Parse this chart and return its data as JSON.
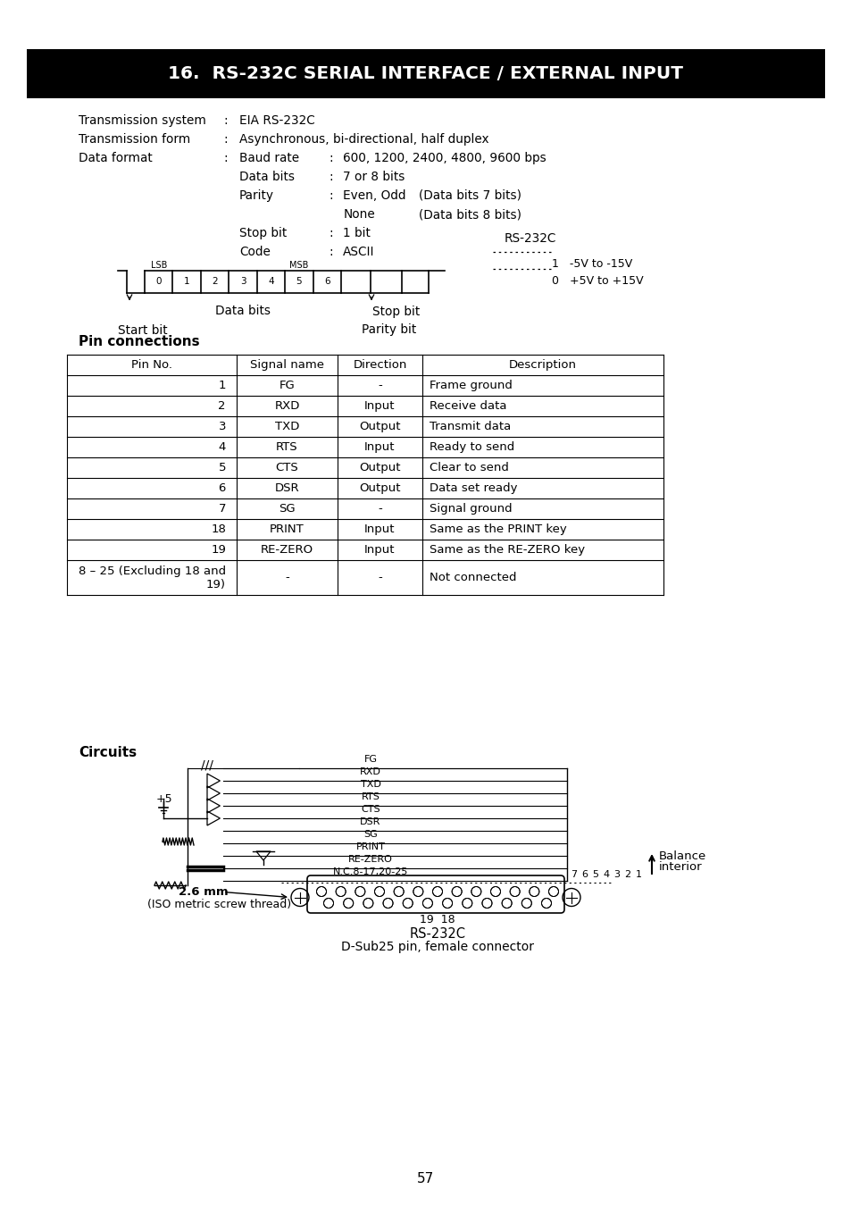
{
  "title": "16.  RS-232C SERIAL INTERFACE / EXTERNAL INPUT",
  "title_bg": "#000000",
  "title_color": "#ffffff",
  "pin_table_headers": [
    "Pin No.",
    "Signal name",
    "Direction",
    "Description"
  ],
  "pin_table_rows": [
    [
      "1",
      "FG",
      "-",
      "Frame ground"
    ],
    [
      "2",
      "RXD",
      "Input",
      "Receive data"
    ],
    [
      "3",
      "TXD",
      "Output",
      "Transmit data"
    ],
    [
      "4",
      "RTS",
      "Input",
      "Ready to send"
    ],
    [
      "5",
      "CTS",
      "Output",
      "Clear to send"
    ],
    [
      "6",
      "DSR",
      "Output",
      "Data set ready"
    ],
    [
      "7",
      "SG",
      "-",
      "Signal ground"
    ],
    [
      "18",
      "PRINT",
      "Input",
      "Same as the PRINT key"
    ],
    [
      "19",
      "RE-ZERO",
      "Input",
      "Same as the RE-ZERO key"
    ],
    [
      "8 – 25 (Excluding 18 and\n19)",
      "-",
      "-",
      "Not connected"
    ]
  ],
  "page_number": "57",
  "bg_color": "#ffffff"
}
